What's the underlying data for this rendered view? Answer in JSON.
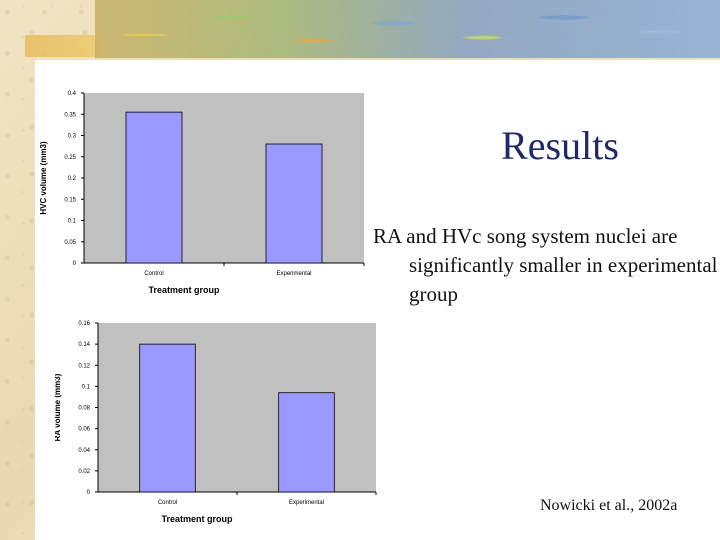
{
  "slide": {
    "title": "Results",
    "body": "RA and HVc song system nuclei are significantly smaller in experimental group",
    "citation": "Nowicki et al., 2002a"
  },
  "colors": {
    "plot_bg": "#c0c0c0",
    "bar": "#9999ff",
    "title": "#1f2a6b"
  },
  "chart_data": [
    {
      "type": "bar",
      "categories": [
        "Control",
        "Experimental"
      ],
      "values": [
        0.355,
        0.28
      ],
      "xlabel": "Treatment group",
      "ylabel": "HVC volume (mm3)",
      "ylim": [
        0,
        0.4
      ],
      "yticks": [
        "0",
        "0.05",
        "0.1",
        "0.15",
        "0.2",
        "0.25",
        "0.3",
        "0.35",
        "0.4"
      ],
      "grid": false
    },
    {
      "type": "bar",
      "categories": [
        "Control",
        "Experimental"
      ],
      "values": [
        0.14,
        0.094
      ],
      "xlabel": "Treatment group",
      "ylabel": "RA volume (mm3)",
      "ylim": [
        0,
        0.16
      ],
      "yticks": [
        "0",
        "0.02",
        "0.04",
        "0.06",
        "0.08",
        "0.1",
        "0.12",
        "0.14",
        "0.16"
      ],
      "grid": false
    }
  ]
}
